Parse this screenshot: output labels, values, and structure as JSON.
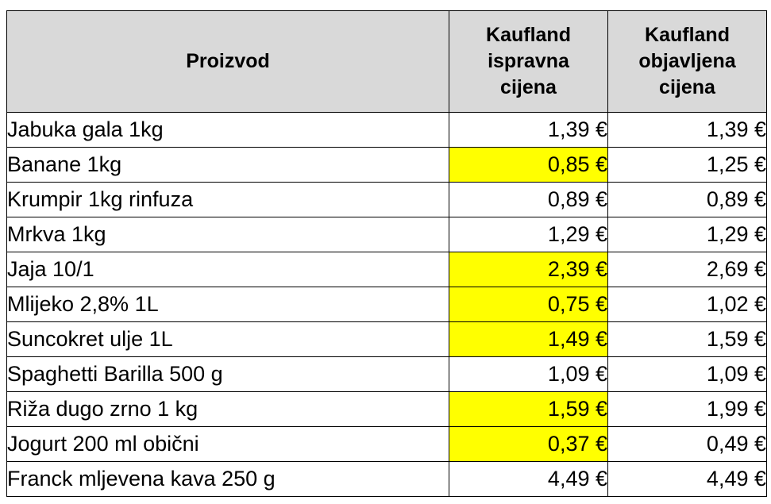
{
  "table": {
    "headers": {
      "product": "Proizvod",
      "correct_price": "Kaufland\nispravna\ncijena",
      "published_price": "Kaufland\nobjavljena\ncijena"
    },
    "highlight_color": "#ffff00",
    "header_bg_color": "#d9d9d9",
    "rows": [
      {
        "product": "Jabuka gala 1kg",
        "correct_price": "1,39 €",
        "published_price": "1,39 €",
        "highlighted": false
      },
      {
        "product": "Banane 1kg",
        "correct_price": "0,85 €",
        "published_price": "1,25 €",
        "highlighted": true
      },
      {
        "product": "Krumpir 1kg rinfuza",
        "correct_price": "0,89 €",
        "published_price": "0,89 €",
        "highlighted": false
      },
      {
        "product": "Mrkva 1kg",
        "correct_price": "1,29 €",
        "published_price": "1,29 €",
        "highlighted": false
      },
      {
        "product": "Jaja 10/1",
        "correct_price": "2,39 €",
        "published_price": "2,69 €",
        "highlighted": true
      },
      {
        "product": "Mlijeko 2,8% 1L",
        "correct_price": "0,75 €",
        "published_price": "1,02 €",
        "highlighted": true
      },
      {
        "product": "Suncokret ulje 1L",
        "correct_price": "1,49 €",
        "published_price": "1,59 €",
        "highlighted": true
      },
      {
        "product": "Spaghetti Barilla 500 g",
        "correct_price": "1,09 €",
        "published_price": "1,09 €",
        "highlighted": false
      },
      {
        "product": "Riža dugo zrno 1 kg",
        "correct_price": "1,59 €",
        "published_price": "1,99 €",
        "highlighted": true
      },
      {
        "product": "Jogurt 200 ml obični",
        "correct_price": "0,37 €",
        "published_price": "0,49 €",
        "highlighted": true
      },
      {
        "product": "Franck mljevena kava 250 g",
        "correct_price": "4,49 €",
        "published_price": "4,49 €",
        "highlighted": false
      }
    ]
  }
}
